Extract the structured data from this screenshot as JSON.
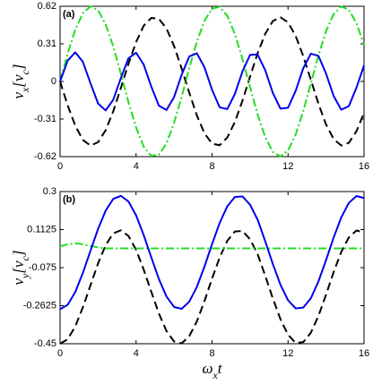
{
  "chart_data": [
    {
      "type": "line",
      "label": "(a)",
      "ylabel": [
        {
          "text": "v"
        },
        {
          "text": "x",
          "sub": true
        },
        {
          "text": "[v"
        },
        {
          "text": "c",
          "sub": true
        },
        {
          "text": "]"
        }
      ],
      "x": [
        0,
        0.4,
        0.8,
        1.2,
        1.6,
        2,
        2.4,
        2.8,
        3.2,
        3.6,
        4,
        4.4,
        4.8,
        5.2,
        5.6,
        6,
        6.4,
        6.8,
        7.2,
        7.6,
        8,
        8.4,
        8.8,
        9.2,
        9.6,
        10,
        10.4,
        10.8,
        11.2,
        11.6,
        12,
        12.4,
        12.8,
        13.2,
        13.6,
        14,
        14.4,
        14.8,
        15.2,
        15.6,
        16
      ],
      "xlim": [
        0,
        16
      ],
      "xticks": [
        0,
        4,
        8,
        12,
        16
      ],
      "ylim": [
        -0.62,
        0.62
      ],
      "yticks": [
        -0.62,
        -0.31,
        0,
        0.31,
        0.62
      ],
      "series": [
        {
          "color": "#000000",
          "style": "dashed",
          "values": [
            0,
            -0.197,
            -0.365,
            -0.482,
            -0.529,
            -0.501,
            -0.402,
            -0.246,
            -0.054,
            0.146,
            0.324,
            0.459,
            0.524,
            0.516,
            0.437,
            0.292,
            0.107,
            -0.093,
            -0.28,
            -0.427,
            -0.513,
            -0.526,
            -0.463,
            -0.335,
            -0.159,
            0.04,
            0.233,
            0.393,
            0.498,
            0.529,
            0.487,
            0.375,
            0.209,
            0.014,
            -0.184,
            -0.355,
            -0.475,
            -0.528,
            -0.506,
            -0.411,
            -0.258
          ]
        },
        {
          "color": "#22dd22",
          "style": "dashdot",
          "values": [
            0,
            0.23,
            0.427,
            0.564,
            0.619,
            0.587,
            0.471,
            0.288,
            0.063,
            -0.171,
            -0.379,
            -0.537,
            -0.613,
            -0.604,
            -0.512,
            -0.342,
            -0.125,
            0.109,
            0.328,
            0.5,
            0.6,
            0.615,
            0.542,
            0.392,
            0.186,
            -0.047,
            -0.273,
            -0.459,
            -0.582,
            -0.619,
            -0.569,
            -0.439,
            -0.245,
            -0.016,
            0.215,
            0.415,
            0.556,
            0.618,
            0.591,
            0.481,
            0.302
          ]
        },
        {
          "color": "#0000ee",
          "style": "solid",
          "values": [
            0,
            0.172,
            0.24,
            0.162,
            -0.014,
            -0.182,
            -0.239,
            -0.151,
            0.028,
            0.191,
            0.237,
            0.14,
            -0.042,
            -0.199,
            -0.235,
            -0.129,
            0.055,
            0.206,
            0.232,
            0.117,
            -0.069,
            -0.213,
            -0.228,
            -0.104,
            0.082,
            0.219,
            0.223,
            0.092,
            -0.095,
            -0.224,
            -0.217,
            -0.078,
            0.108,
            0.229,
            0.211,
            0.065,
            -0.12,
            -0.233,
            -0.204,
            -0.052,
            0.132
          ]
        }
      ]
    },
    {
      "type": "line",
      "label": "(b)",
      "ylabel": [
        {
          "text": "v"
        },
        {
          "text": "y",
          "sub": true
        },
        {
          "text": "[v"
        },
        {
          "text": "c",
          "sub": true
        },
        {
          "text": "]"
        }
      ],
      "xlabel": [
        {
          "text": "ω"
        },
        {
          "text": "x",
          "sub": true
        },
        {
          "text": "t"
        }
      ],
      "x": [
        0,
        0.4,
        0.8,
        1.2,
        1.6,
        2,
        2.4,
        2.8,
        3.2,
        3.6,
        4,
        4.4,
        4.8,
        5.2,
        5.6,
        6,
        6.4,
        6.8,
        7.2,
        7.6,
        8,
        8.4,
        8.8,
        9.2,
        9.6,
        10,
        10.4,
        10.8,
        11.2,
        11.6,
        12,
        12.4,
        12.8,
        13.2,
        13.6,
        14,
        14.4,
        14.8,
        15.2,
        15.6,
        16
      ],
      "xlim": [
        0,
        16
      ],
      "xticks": [
        0,
        4,
        8,
        12,
        16
      ],
      "ylim": [
        -0.45,
        0.3
      ],
      "yticks": [
        -0.45,
        -0.2625,
        -0.075,
        0.1125,
        0.3
      ],
      "series": [
        {
          "color": "#000000",
          "style": "dashed",
          "values": [
            -0.45,
            -0.428,
            -0.365,
            -0.271,
            -0.162,
            -0.054,
            0.036,
            0.094,
            0.109,
            0.081,
            0.013,
            -0.084,
            -0.194,
            -0.301,
            -0.387,
            -0.439,
            -0.448,
            -0.413,
            -0.34,
            -0.24,
            -0.129,
            -0.025,
            0.057,
            0.103,
            0.106,
            0.065,
            -0.009,
            -0.115,
            -0.227,
            -0.329,
            -0.406,
            -0.446,
            -0.442,
            -0.396,
            -0.313,
            -0.208,
            -0.097,
            0.002,
            0.074,
            0.108,
            0.098
          ]
        },
        {
          "color": "#22dd22",
          "style": "dashdot",
          "values": [
            0.03,
            0.04,
            0.045,
            0.04,
            0.032,
            0.025,
            0.02,
            0.02,
            0.02,
            0.02,
            0.02,
            0.02,
            0.02,
            0.02,
            0.02,
            0.02,
            0.02,
            0.02,
            0.02,
            0.02,
            0.02,
            0.02,
            0.02,
            0.02,
            0.02,
            0.02,
            0.02,
            0.02,
            0.02,
            0.02,
            0.02,
            0.02,
            0.02,
            0.02,
            0.02,
            0.02,
            0.02,
            0.02,
            0.02,
            0.02,
            0.02
          ]
        },
        {
          "color": "#0000ee",
          "style": "solid",
          "values": [
            -0.28,
            -0.258,
            -0.195,
            -0.101,
            0.008,
            0.116,
            0.206,
            0.264,
            0.279,
            0.251,
            0.183,
            0.086,
            -0.024,
            -0.131,
            -0.217,
            -0.269,
            -0.278,
            -0.243,
            -0.17,
            -0.07,
            0.041,
            0.145,
            0.227,
            0.273,
            0.276,
            0.235,
            0.161,
            0.055,
            -0.057,
            -0.159,
            -0.236,
            -0.276,
            -0.272,
            -0.226,
            -0.143,
            -0.038,
            0.073,
            0.172,
            0.244,
            0.278,
            0.268
          ]
        }
      ]
    }
  ]
}
